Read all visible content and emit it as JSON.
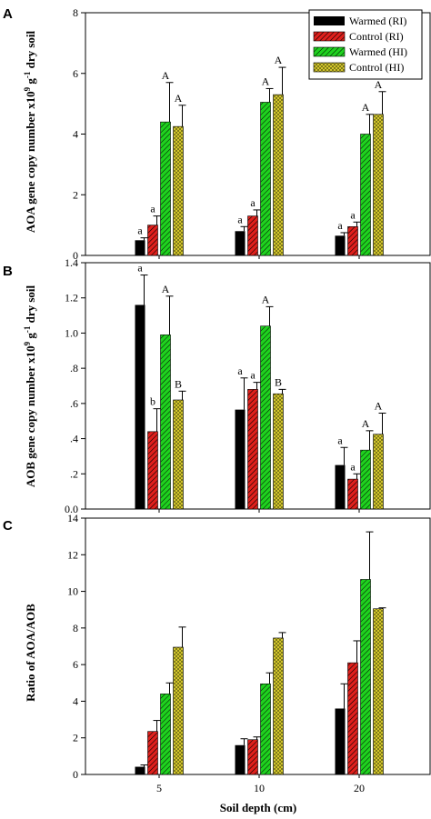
{
  "x_axis": {
    "label": "Soil depth (cm)"
  },
  "legend": {
    "placement": "top-right",
    "entries": [
      {
        "label": "Warmed (RI)",
        "color": "#000000",
        "pattern": "solid"
      },
      {
        "label": "Control (RI)",
        "color": "#e0201c",
        "pattern": "hatch"
      },
      {
        "label": "Warmed (HI)",
        "color": "#1fd21f",
        "pattern": "hatch"
      },
      {
        "label": "Control (HI)",
        "color": "#e8dc30",
        "pattern": "crosshatch"
      }
    ]
  },
  "chart_data": [
    {
      "type": "bar",
      "panel": "A",
      "ylabel": "AOA gene copy number x10^9 g^-1 dry soil",
      "ylabel_parts": {
        "text1": "AOA gene copy number x10",
        "sup1": "9",
        "text2": " g",
        "sup2": "-1",
        "text3": " dry soil"
      },
      "ylim": [
        0,
        8
      ],
      "yticks": [
        0,
        2,
        4,
        6,
        8
      ],
      "ytick_labels": [
        "0",
        "2",
        "4",
        "6",
        "8"
      ],
      "categories": [
        "5",
        "10",
        "20"
      ],
      "series": [
        {
          "name": "Warmed (RI)",
          "values": [
            0.5,
            0.8,
            0.65
          ],
          "errors": [
            0.08,
            0.15,
            0.1
          ],
          "labels": [
            "a",
            "a",
            "a"
          ]
        },
        {
          "name": "Control (RI)",
          "values": [
            1.0,
            1.3,
            0.95
          ],
          "errors": [
            0.3,
            0.2,
            0.15
          ],
          "labels": [
            "a",
            "a",
            "a"
          ]
        },
        {
          "name": "Warmed (HI)",
          "values": [
            4.4,
            5.05,
            4.0
          ],
          "errors": [
            1.3,
            0.45,
            0.65
          ],
          "labels": [
            "A",
            "A",
            "A"
          ]
        },
        {
          "name": "Control (HI)",
          "values": [
            4.25,
            5.3,
            4.65
          ],
          "errors": [
            0.7,
            0.9,
            0.75
          ],
          "labels": [
            "A",
            "A",
            "A"
          ]
        }
      ]
    },
    {
      "type": "bar",
      "panel": "B",
      "ylabel": "AOB gene copy number x10^9 g^-1 dry soil",
      "ylabel_parts": {
        "text1": "AOB gene copy number x10",
        "sup1": "9",
        "text2": " g",
        "sup2": "-1",
        "text3": " dry soil"
      },
      "ylim": [
        0,
        1.4
      ],
      "yticks": [
        0,
        0.2,
        0.4,
        0.6,
        0.8,
        1.0,
        1.2,
        1.4
      ],
      "ytick_labels": [
        "0.0",
        ".2",
        ".4",
        ".6",
        ".8",
        "1.0",
        "1.2",
        "1.4"
      ],
      "categories": [
        "5",
        "10",
        "20"
      ],
      "series": [
        {
          "name": "Warmed (RI)",
          "values": [
            1.16,
            0.565,
            0.25
          ],
          "errors": [
            0.17,
            0.18,
            0.1
          ],
          "labels": [
            "a",
            "a",
            "a"
          ]
        },
        {
          "name": "Control (RI)",
          "values": [
            0.44,
            0.68,
            0.17
          ],
          "errors": [
            0.13,
            0.04,
            0.03
          ],
          "labels": [
            "b",
            "a",
            "a"
          ]
        },
        {
          "name": "Warmed (HI)",
          "values": [
            0.99,
            1.04,
            0.335
          ],
          "errors": [
            0.22,
            0.11,
            0.11
          ],
          "labels": [
            "A",
            "A",
            "A"
          ]
        },
        {
          "name": "Control (HI)",
          "values": [
            0.62,
            0.655,
            0.425
          ],
          "errors": [
            0.05,
            0.025,
            0.12
          ],
          "labels": [
            "B",
            "B",
            "A"
          ]
        }
      ]
    },
    {
      "type": "bar",
      "panel": "C",
      "ylabel": "Ratio of AOA/AOB",
      "ylim": [
        0,
        14
      ],
      "yticks": [
        0,
        2,
        4,
        6,
        8,
        10,
        12,
        14
      ],
      "ytick_labels": [
        "0",
        "2",
        "4",
        "6",
        "8",
        "10",
        "12",
        "14"
      ],
      "categories": [
        "5",
        "10",
        "20"
      ],
      "series": [
        {
          "name": "Warmed (RI)",
          "values": [
            0.42,
            1.6,
            3.6
          ],
          "errors": [
            0.1,
            0.35,
            1.35
          ],
          "labels": []
        },
        {
          "name": "Control (RI)",
          "values": [
            2.35,
            1.9,
            6.1
          ],
          "errors": [
            0.6,
            0.15,
            1.2
          ],
          "labels": []
        },
        {
          "name": "Warmed (HI)",
          "values": [
            4.4,
            4.95,
            10.65
          ],
          "errors": [
            0.6,
            0.6,
            2.6
          ],
          "labels": []
        },
        {
          "name": "Control (HI)",
          "values": [
            6.95,
            7.45,
            9.05
          ],
          "errors": [
            1.1,
            0.3,
            0.05
          ],
          "labels": []
        }
      ]
    }
  ]
}
